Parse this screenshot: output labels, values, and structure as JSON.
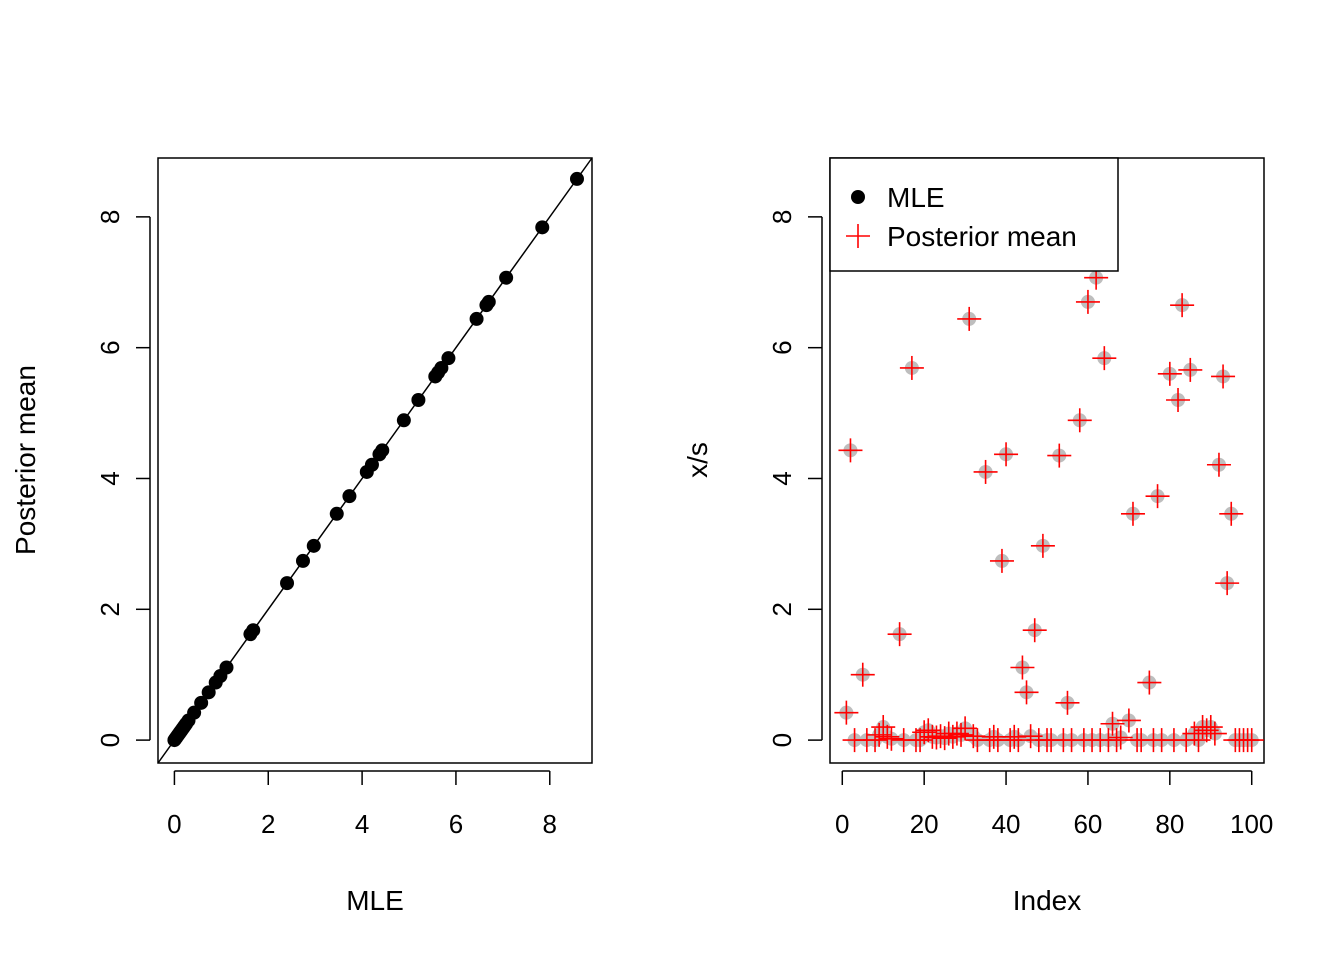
{
  "chart_data": [
    {
      "type": "scatter",
      "title": "",
      "xlabel": "MLE",
      "ylabel": "Posterior mean",
      "xlim": [
        -0.35,
        8.9
      ],
      "ylim": [
        -0.35,
        8.9
      ],
      "x_ticks": [
        "0",
        "2",
        "4",
        "6",
        "8"
      ],
      "y_ticks": [
        "0",
        "2",
        "4",
        "6",
        "8"
      ],
      "reference_line": "y = x",
      "point_color": "#000000",
      "x": [
        0,
        0.02,
        0.04,
        0.06,
        0.08,
        0.1,
        0.12,
        0.14,
        0.16,
        0.18,
        0.2,
        0.22,
        0.25,
        0.3,
        0.42,
        0.57,
        0.73,
        0.88,
        0.98,
        1.11,
        1.62,
        1.68,
        2.4,
        2.74,
        2.97,
        3.46,
        3.73,
        4.1,
        4.21,
        4.37,
        4.43,
        4.89,
        5.2,
        5.56,
        5.62,
        5.69,
        5.84,
        6.44,
        6.65,
        6.7,
        7.07,
        7.84,
        8.58
      ],
      "y": [
        0,
        0.02,
        0.04,
        0.06,
        0.08,
        0.1,
        0.12,
        0.14,
        0.16,
        0.18,
        0.2,
        0.22,
        0.25,
        0.3,
        0.42,
        0.57,
        0.73,
        0.88,
        0.98,
        1.11,
        1.62,
        1.68,
        2.4,
        2.74,
        2.97,
        3.46,
        3.73,
        4.1,
        4.21,
        4.37,
        4.43,
        4.89,
        5.2,
        5.56,
        5.62,
        5.69,
        5.84,
        6.44,
        6.65,
        6.7,
        7.07,
        7.84,
        8.58
      ]
    },
    {
      "type": "scatter",
      "title": "",
      "xlabel": "Index",
      "ylabel": "x/s",
      "xlim": [
        -3,
        103
      ],
      "ylim": [
        -0.35,
        8.9
      ],
      "x_ticks": [
        "0",
        "20",
        "40",
        "60",
        "80",
        "100"
      ],
      "y_ticks": [
        "0",
        "2",
        "4",
        "6",
        "8"
      ],
      "legend": {
        "position": "top-left",
        "entries": [
          "MLE",
          "Posterior mean"
        ]
      },
      "series": [
        {
          "name": "MLE",
          "marker": "circle",
          "color": "#bebebe",
          "points": [
            [
              1,
              0.42
            ],
            [
              2,
              4.43
            ],
            [
              3,
              0
            ],
            [
              5,
              1.0
            ],
            [
              6,
              0
            ],
            [
              8,
              0
            ],
            [
              9,
              0.08
            ],
            [
              10,
              0.2
            ],
            [
              11,
              0.05
            ],
            [
              12,
              0.02
            ],
            [
              14,
              1.62
            ],
            [
              15,
              0
            ],
            [
              17,
              5.69
            ],
            [
              18,
              0
            ],
            [
              19,
              0
            ],
            [
              20,
              0.12
            ],
            [
              21,
              0.15
            ],
            [
              22,
              0.05
            ],
            [
              23,
              0.04
            ],
            [
              24,
              0.06
            ],
            [
              25,
              0.03
            ],
            [
              26,
              0.1
            ],
            [
              27,
              0.05
            ],
            [
              28,
              0.1
            ],
            [
              29,
              0.08
            ],
            [
              30,
              0.18
            ],
            [
              31,
              6.44
            ],
            [
              32,
              0.06
            ],
            [
              33,
              0
            ],
            [
              35,
              4.1
            ],
            [
              36,
              0
            ],
            [
              37,
              0.05
            ],
            [
              38,
              0
            ],
            [
              39,
              2.74
            ],
            [
              40,
              4.37
            ],
            [
              41,
              0
            ],
            [
              42,
              0.05
            ],
            [
              43,
              0
            ],
            [
              44,
              1.11
            ],
            [
              45,
              0.73
            ],
            [
              46,
              0.06
            ],
            [
              47,
              1.68
            ],
            [
              48,
              0
            ],
            [
              49,
              2.97
            ],
            [
              50,
              0
            ],
            [
              51,
              0
            ],
            [
              53,
              4.35
            ],
            [
              54,
              0
            ],
            [
              55,
              0.57
            ],
            [
              56,
              0
            ],
            [
              58,
              4.89
            ],
            [
              59,
              0
            ],
            [
              60,
              6.7
            ],
            [
              61,
              0
            ],
            [
              62,
              7.07
            ],
            [
              63,
              0
            ],
            [
              64,
              5.84
            ],
            [
              65,
              0
            ],
            [
              66,
              0.25
            ],
            [
              67,
              0
            ],
            [
              68,
              0.04
            ],
            [
              70,
              0.3
            ],
            [
              71,
              3.46
            ],
            [
              72,
              0
            ],
            [
              73,
              0
            ],
            [
              75,
              0.88
            ],
            [
              76,
              0
            ],
            [
              77,
              3.73
            ],
            [
              78,
              0
            ],
            [
              80,
              5.6
            ],
            [
              81,
              0
            ],
            [
              82,
              5.2
            ],
            [
              83,
              6.65
            ],
            [
              84,
              0
            ],
            [
              85,
              5.66
            ],
            [
              86,
              0.1
            ],
            [
              87,
              0
            ],
            [
              88,
              0.2
            ],
            [
              89,
              0.15
            ],
            [
              90,
              0.2
            ],
            [
              91,
              0.1
            ],
            [
              92,
              4.21
            ],
            [
              93,
              5.56
            ],
            [
              94,
              2.4
            ],
            [
              95,
              3.46
            ],
            [
              96,
              0
            ],
            [
              97,
              0
            ],
            [
              98,
              0
            ],
            [
              99,
              0
            ],
            [
              100,
              0
            ]
          ]
        },
        {
          "name": "Posterior mean",
          "marker": "plus",
          "color": "#ff0000",
          "points": [
            [
              1,
              0.42
            ],
            [
              2,
              4.43
            ],
            [
              3,
              0
            ],
            [
              5,
              1.0
            ],
            [
              6,
              0
            ],
            [
              8,
              0
            ],
            [
              9,
              0.08
            ],
            [
              10,
              0.2
            ],
            [
              11,
              0.05
            ],
            [
              12,
              0.02
            ],
            [
              14,
              1.62
            ],
            [
              15,
              0
            ],
            [
              17,
              5.69
            ],
            [
              18,
              0
            ],
            [
              19,
              0
            ],
            [
              20,
              0.12
            ],
            [
              21,
              0.15
            ],
            [
              22,
              0.05
            ],
            [
              23,
              0.04
            ],
            [
              24,
              0.06
            ],
            [
              25,
              0.03
            ],
            [
              26,
              0.1
            ],
            [
              27,
              0.05
            ],
            [
              28,
              0.1
            ],
            [
              29,
              0.08
            ],
            [
              30,
              0.18
            ],
            [
              31,
              6.44
            ],
            [
              32,
              0.06
            ],
            [
              33,
              0
            ],
            [
              35,
              4.1
            ],
            [
              36,
              0
            ],
            [
              37,
              0.05
            ],
            [
              38,
              0
            ],
            [
              39,
              2.74
            ],
            [
              40,
              4.37
            ],
            [
              41,
              0
            ],
            [
              42,
              0.05
            ],
            [
              43,
              0
            ],
            [
              44,
              1.11
            ],
            [
              45,
              0.73
            ],
            [
              46,
              0.06
            ],
            [
              47,
              1.68
            ],
            [
              48,
              0
            ],
            [
              49,
              2.97
            ],
            [
              50,
              0
            ],
            [
              51,
              0
            ],
            [
              53,
              4.35
            ],
            [
              54,
              0
            ],
            [
              55,
              0.57
            ],
            [
              56,
              0
            ],
            [
              58,
              4.89
            ],
            [
              59,
              0
            ],
            [
              60,
              6.7
            ],
            [
              61,
              0
            ],
            [
              62,
              7.07
            ],
            [
              63,
              0
            ],
            [
              64,
              5.84
            ],
            [
              65,
              0
            ],
            [
              66,
              0.25
            ],
            [
              67,
              0
            ],
            [
              68,
              0.04
            ],
            [
              70,
              0.3
            ],
            [
              71,
              3.46
            ],
            [
              72,
              0
            ],
            [
              73,
              0
            ],
            [
              75,
              0.88
            ],
            [
              76,
              0
            ],
            [
              77,
              3.73
            ],
            [
              78,
              0
            ],
            [
              80,
              5.6
            ],
            [
              81,
              0
            ],
            [
              82,
              5.2
            ],
            [
              83,
              6.65
            ],
            [
              84,
              0
            ],
            [
              85,
              5.66
            ],
            [
              86,
              0.1
            ],
            [
              87,
              0
            ],
            [
              88,
              0.2
            ],
            [
              89,
              0.15
            ],
            [
              90,
              0.2
            ],
            [
              91,
              0.1
            ],
            [
              92,
              4.21
            ],
            [
              93,
              5.56
            ],
            [
              94,
              2.4
            ],
            [
              95,
              3.46
            ],
            [
              96,
              0
            ],
            [
              97,
              0
            ],
            [
              98,
              0
            ],
            [
              99,
              0
            ],
            [
              100,
              0
            ]
          ]
        }
      ]
    }
  ]
}
